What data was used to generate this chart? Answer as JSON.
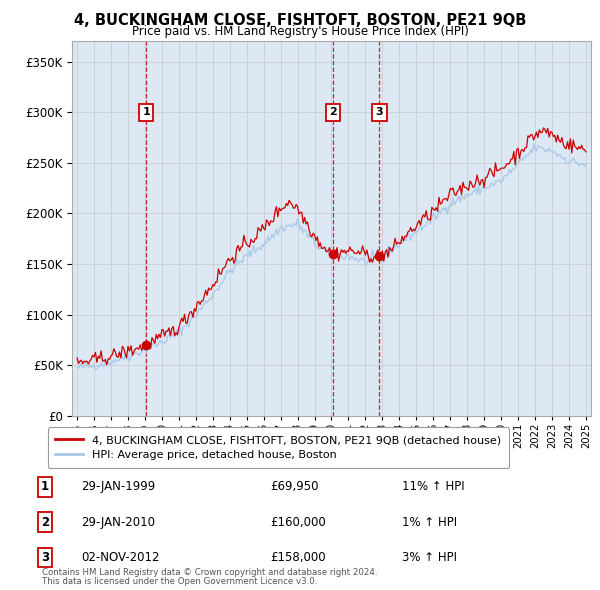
{
  "title": "4, BUCKINGHAM CLOSE, FISHTOFT, BOSTON, PE21 9QB",
  "subtitle": "Price paid vs. HM Land Registry's House Price Index (HPI)",
  "legend_line1": "4, BUCKINGHAM CLOSE, FISHTOFT, BOSTON, PE21 9QB (detached house)",
  "legend_line2": "HPI: Average price, detached house, Boston",
  "footer1": "Contains HM Land Registry data © Crown copyright and database right 2024.",
  "footer2": "This data is licensed under the Open Government Licence v3.0.",
  "sales": [
    {
      "label": "1",
      "date": "29-JAN-1999",
      "price": 69950,
      "x": 1999.08,
      "hpi_pct": "11% ↑ HPI"
    },
    {
      "label": "2",
      "date": "29-JAN-2010",
      "price": 160000,
      "x": 2010.08,
      "hpi_pct": "1% ↑ HPI"
    },
    {
      "label": "3",
      "date": "02-NOV-2012",
      "price": 158000,
      "x": 2012.83,
      "hpi_pct": "3% ↑ HPI"
    }
  ],
  "hpi_color": "#a8c8e8",
  "price_color": "#cc0000",
  "vline_color": "#cc0000",
  "dot_color": "#cc0000",
  "grid_color": "#cccccc",
  "chart_bg": "#dce9f5",
  "background_color": "#ffffff",
  "ylim": [
    0,
    370000
  ],
  "xlim": [
    1994.7,
    2025.3
  ]
}
